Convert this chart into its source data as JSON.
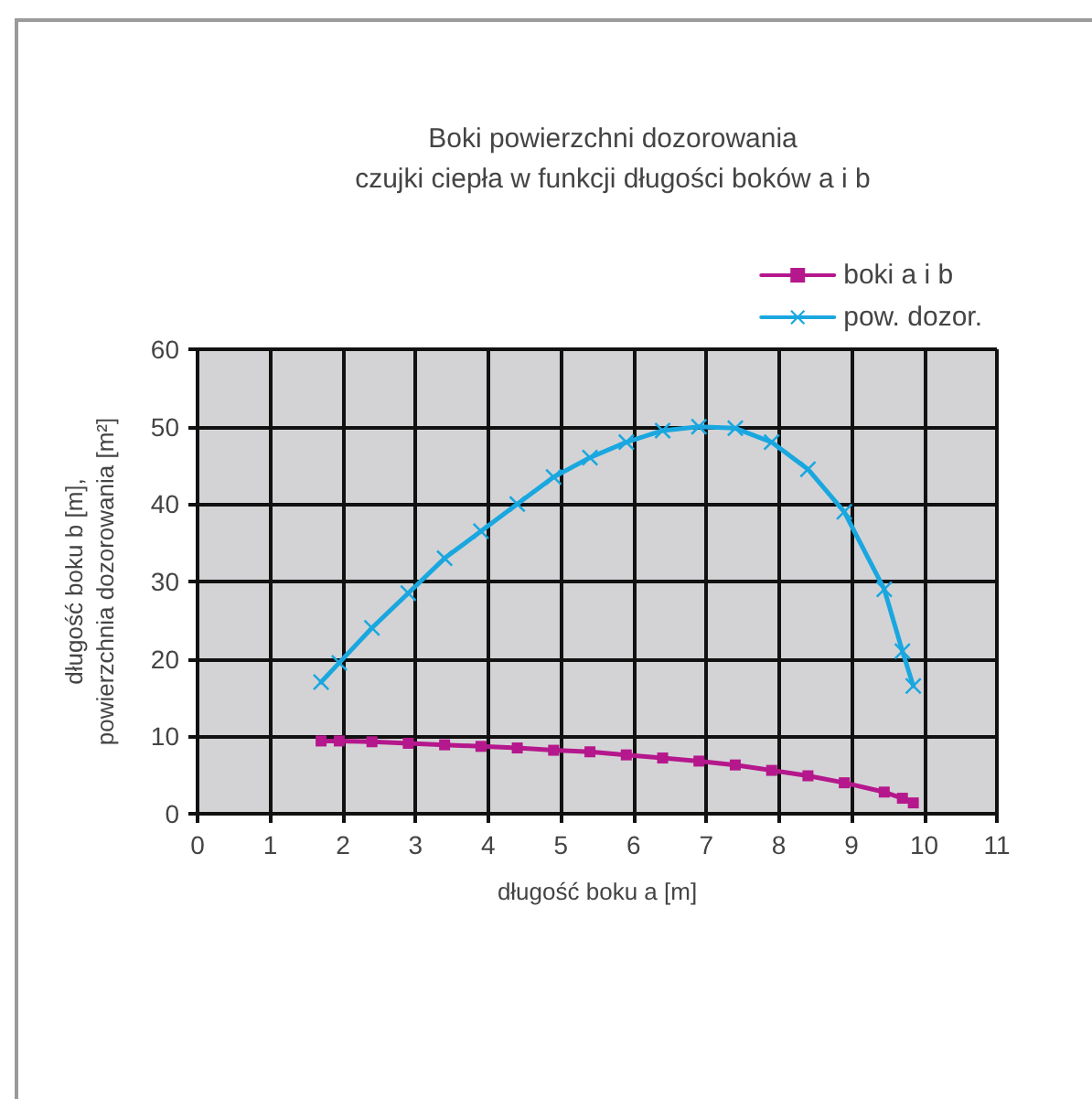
{
  "chart_data": {
    "type": "line",
    "title": "Boki powierzchni dozorowania\nczujki ciepła w funkcji długości boków a i b",
    "xlabel": "długość boku a [m]",
    "ylabel": "długość boku b [m],\npowierzchnia dozorowania [m²]",
    "x": [
      1.7,
      1.95,
      2.4,
      2.9,
      3.4,
      3.9,
      4.4,
      4.9,
      5.4,
      5.9,
      6.4,
      6.9,
      7.4,
      7.9,
      8.4,
      8.9,
      9.45,
      9.7,
      9.85
    ],
    "series": [
      {
        "name": "boki a i b",
        "color": "#b5178c",
        "marker": "square",
        "values": [
          9.4,
          9.4,
          9.3,
          9.1,
          8.9,
          8.7,
          8.5,
          8.2,
          8.0,
          7.6,
          7.2,
          6.8,
          6.3,
          5.6,
          4.9,
          4.0,
          2.8,
          2.0,
          1.4
        ]
      },
      {
        "name": "pow. dozor.",
        "color": "#1aa7e0",
        "marker": "cross",
        "values": [
          17,
          19.5,
          24,
          28.5,
          33,
          36.5,
          40,
          43.5,
          46,
          48,
          49.5,
          50,
          49.8,
          48,
          44.5,
          39,
          29,
          21,
          16.5
        ]
      }
    ],
    "xlim": [
      0,
      11
    ],
    "xticks": [
      0,
      1,
      2,
      3,
      4,
      5,
      6,
      7,
      8,
      9,
      10,
      11
    ],
    "ylim": [
      0,
      60
    ],
    "yticks": [
      0,
      10,
      20,
      30,
      40,
      50,
      60
    ],
    "grid": true,
    "legend": "top right"
  }
}
